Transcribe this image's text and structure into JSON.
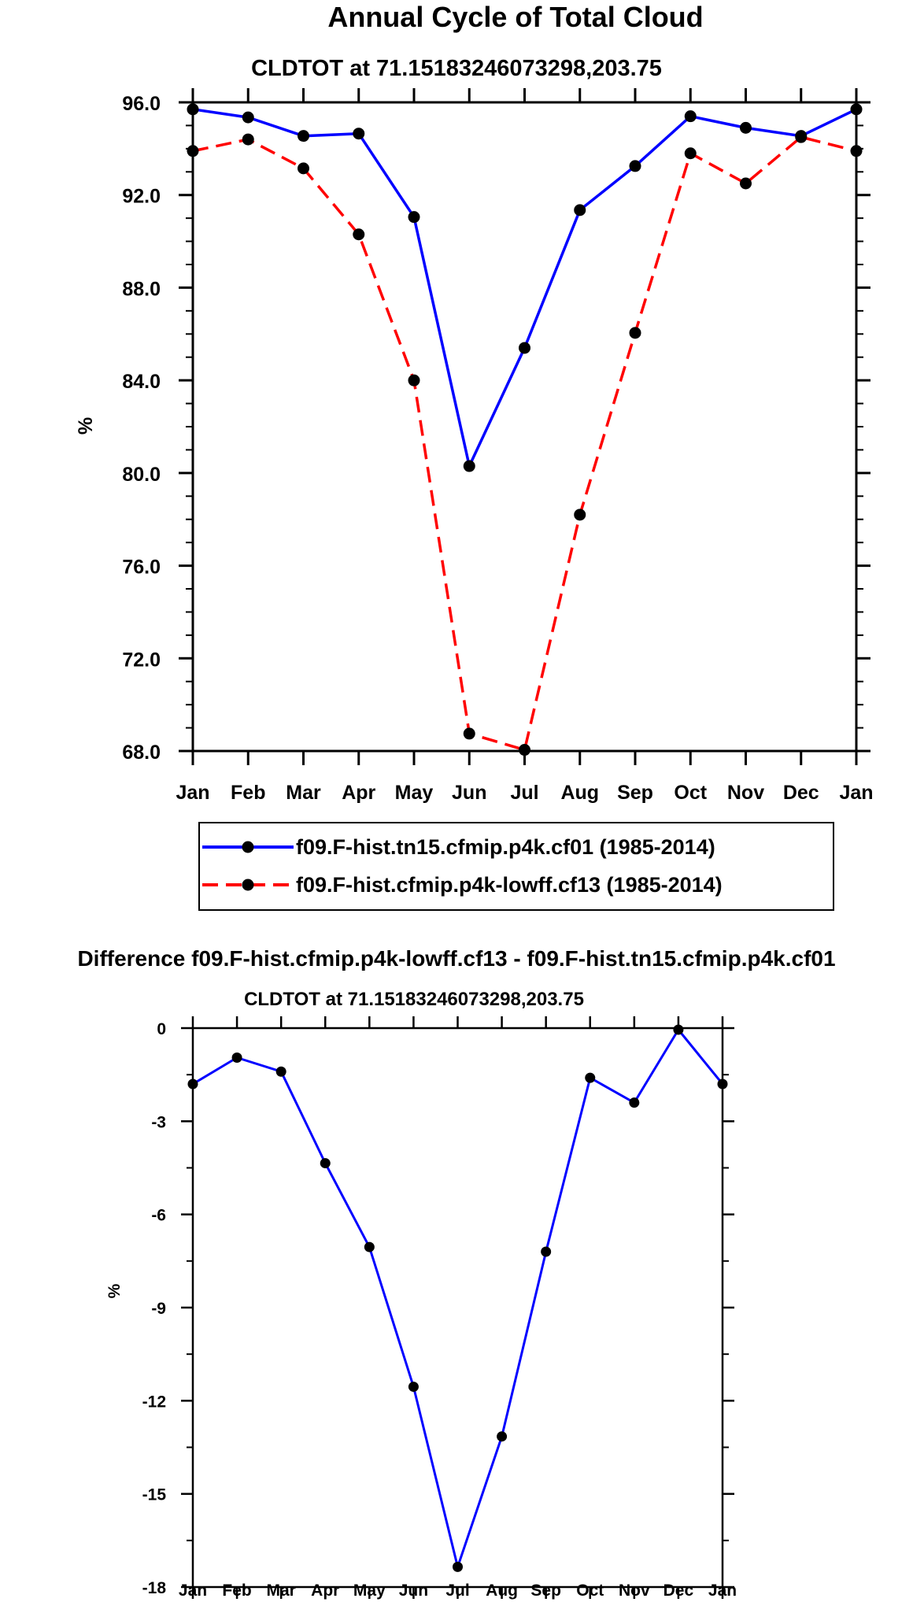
{
  "chart_data": [
    {
      "type": "line",
      "title": "Annual Cycle of Total Cloud",
      "subtitle": "CLDTOT at 71.15183246073298,203.75",
      "xlabel": "",
      "ylabel": "%",
      "categories": [
        "Jan",
        "Feb",
        "Mar",
        "Apr",
        "May",
        "Jun",
        "Jul",
        "Aug",
        "Sep",
        "Oct",
        "Nov",
        "Dec",
        "Jan"
      ],
      "ylim": [
        68.0,
        96.0
      ],
      "yticks": [
        "96.0",
        "92.0",
        "88.0",
        "84.0",
        "80.0",
        "76.0",
        "72.0",
        "68.0"
      ],
      "series": [
        {
          "name": "f09.F-hist.tn15.cfmip.p4k.cf01 (1985-2014)",
          "color": "#0000ff",
          "dash": "solid",
          "values": [
            95.7,
            95.35,
            94.55,
            94.65,
            91.05,
            80.3,
            85.4,
            91.35,
            93.25,
            95.4,
            94.9,
            94.55,
            95.7
          ]
        },
        {
          "name": "f09.F-hist.cfmip.p4k-lowff.cf13 (1985-2014)",
          "color": "#ff0000",
          "dash": "dashed",
          "values": [
            93.9,
            94.4,
            93.15,
            90.3,
            84.0,
            68.75,
            68.05,
            78.2,
            86.05,
            93.8,
            92.5,
            94.5,
            93.9
          ]
        }
      ],
      "legend_placement": "bottom-center"
    },
    {
      "type": "line",
      "title": "Difference f09.F-hist.cfmip.p4k-lowff.cf13 - f09.F-hist.tn15.cfmip.p4k.cf01",
      "subtitle": "CLDTOT at 71.15183246073298,203.75",
      "xlabel": "",
      "ylabel": "%",
      "categories": [
        "Jan",
        "Feb",
        "Mar",
        "Apr",
        "May",
        "Jun",
        "Jul",
        "Aug",
        "Sep",
        "Oct",
        "Nov",
        "Dec",
        "Jan"
      ],
      "ylim": [
        -18,
        0
      ],
      "yticks": [
        "0",
        "-3",
        "-6",
        "-9",
        "-12",
        "-15",
        "-18"
      ],
      "series": [
        {
          "name": "difference",
          "color": "#0000ff",
          "dash": "solid",
          "values": [
            -1.8,
            -0.95,
            -1.4,
            -4.35,
            -7.05,
            -11.55,
            -17.35,
            -13.15,
            -7.2,
            -1.6,
            -2.4,
            -0.05,
            -1.8
          ]
        }
      ]
    }
  ]
}
